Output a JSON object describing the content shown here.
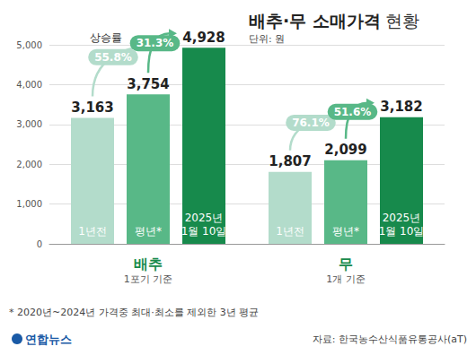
{
  "chart_data": {
    "type": "bar",
    "title": "배추·무 소매가격 현황",
    "subtitle": "단위: 원",
    "categories": [
      "배추",
      "무"
    ],
    "category_notes": [
      "1포기 기준",
      "1개 기준"
    ],
    "series": [
      {
        "name": "1년전",
        "color": "#b3dccb",
        "values": [
          3163,
          1807
        ],
        "value_labels": [
          "3,163",
          "1,807"
        ]
      },
      {
        "name": "평년*",
        "color": "#58b887",
        "values": [
          3754,
          2099
        ],
        "value_labels": [
          "3,754",
          "2,099"
        ]
      },
      {
        "name": "2025년 1월 10일",
        "color": "#178a4c",
        "values": [
          4928,
          3182
        ],
        "value_labels": [
          "4,928",
          "3,182"
        ]
      }
    ],
    "ylim": [
      0,
      5000
    ],
    "yticks": [
      0,
      {
        "value": 1000,
        "label": "1,000"
      },
      {
        "value": 2000,
        "label": "2,000"
      },
      {
        "value": 3000,
        "label": "3,000"
      },
      {
        "value": 4000,
        "label": "4,000"
      },
      {
        "value": 5000,
        "label": "5,000"
      }
    ],
    "grid": true,
    "data_labels": true,
    "annotations": {
      "label": "상승률",
      "changes": [
        {
          "category": "배추",
          "from": "1년전",
          "to": "2025년 1월 10일",
          "value": 55.8,
          "label": "55.8%"
        },
        {
          "category": "배추",
          "from": "평년*",
          "to": "2025년 1월 10일",
          "value": 31.3,
          "label": "31.3%"
        },
        {
          "category": "무",
          "from": "1년전",
          "to": "2025년 1월 10일",
          "value": 76.1,
          "label": "76.1%"
        },
        {
          "category": "무",
          "from": "평년*",
          "to": "2025년 1월 10일",
          "value": 51.6,
          "label": "51.6%"
        }
      ]
    },
    "footnote": "* 2020년~2024년 가격중 최대·최소를 제외한 3년 평균",
    "source": "자료: 한국농수산식품유통공사(aT)",
    "credit": "연합뉴스"
  }
}
